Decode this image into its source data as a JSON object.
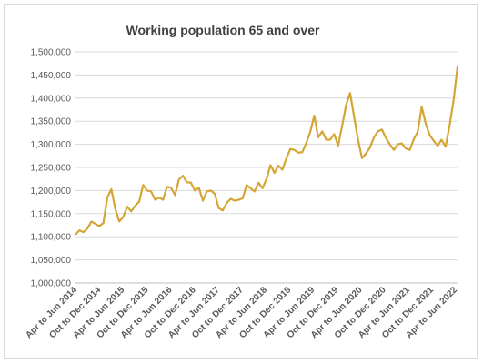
{
  "chart_data": {
    "type": "line",
    "title": "Working population 65 and over",
    "xlabel": "",
    "ylabel": "",
    "ylim": [
      1000000,
      1500000
    ],
    "y_ticks": [
      "1,000,000",
      "1,050,000",
      "1,100,000",
      "1,150,000",
      "1,200,000",
      "1,250,000",
      "1,300,000",
      "1,350,000",
      "1,400,000",
      "1,450,000",
      "1,500,000"
    ],
    "x_tick_labels": [
      "Apr to Jun 2014",
      "Oct to Dec 2014",
      "Apr to Jun 2015",
      "Oct to Dec 2015",
      "Apr to Jun 2016",
      "Oct to Dec 2016",
      "Apr to Jun 2017",
      "Oct to Dec 2017",
      "Apr to Jun 2018",
      "Oct to Dec 2018",
      "Apr to Jun 2019",
      "Oct to Dec 2019",
      "Apr to Jun 2020",
      "Oct to Dec 2020",
      "Apr to Jun 2021",
      "Oct to Dec 2021",
      "Apr to Jun 2022"
    ],
    "grid": true,
    "line_color": "#D4A636",
    "series": [
      {
        "values": [
          1105000,
          1114000,
          1110000,
          1118000,
          1133000,
          1128000,
          1123000,
          1130000,
          1185000,
          1203000,
          1160000,
          1133000,
          1143000,
          1165000,
          1155000,
          1167000,
          1176000,
          1212000,
          1200000,
          1198000,
          1180000,
          1185000,
          1180000,
          1208000,
          1206000,
          1190000,
          1224000,
          1232000,
          1218000,
          1217000,
          1200000,
          1206000,
          1178000,
          1198000,
          1200000,
          1193000,
          1162000,
          1157000,
          1173000,
          1182000,
          1178000,
          1180000,
          1183000,
          1212000,
          1205000,
          1198000,
          1217000,
          1205000,
          1225000,
          1255000,
          1238000,
          1254000,
          1245000,
          1270000,
          1290000,
          1288000,
          1282000,
          1283000,
          1303000,
          1327000,
          1362000,
          1315000,
          1328000,
          1310000,
          1310000,
          1322000,
          1297000,
          1340000,
          1385000,
          1411000,
          1360000,
          1310000,
          1270000,
          1280000,
          1293000,
          1315000,
          1328000,
          1332000,
          1314000,
          1300000,
          1288000,
          1300000,
          1302000,
          1291000,
          1288000,
          1311000,
          1327000,
          1381000,
          1345000,
          1320000,
          1308000,
          1297000,
          1310000,
          1295000,
          1340000,
          1395000,
          1468000
        ]
      }
    ]
  }
}
